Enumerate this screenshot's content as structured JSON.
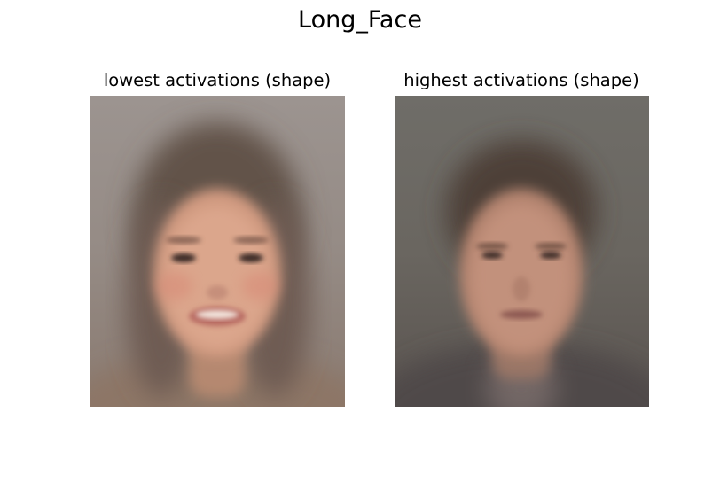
{
  "figure": {
    "title": "Long_Face"
  },
  "panels": [
    {
      "title": "lowest activations (shape)",
      "image": "average-face-smiling-woman"
    },
    {
      "title": "highest activations (shape)",
      "image": "average-face-neutral-man"
    }
  ]
}
